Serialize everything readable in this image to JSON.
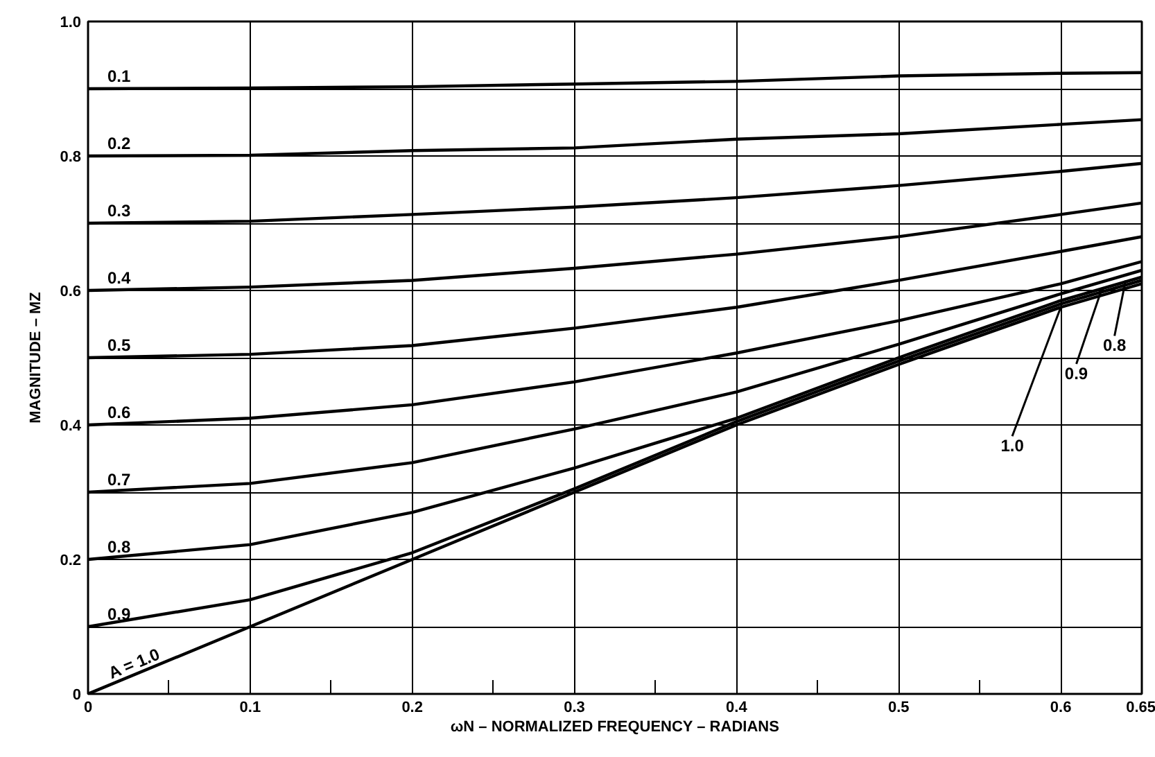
{
  "chart_data": {
    "type": "line",
    "xlabel": "ωN – NORMALIZED FREQUENCY – RADIANS",
    "ylabel": "MAGNITUDE – MZ",
    "x": [
      0,
      0.1,
      0.2,
      0.3,
      0.4,
      0.5,
      0.6,
      0.65
    ],
    "series": [
      {
        "name": "0.1",
        "color": "#000000",
        "values": [
          0.9,
          0.901,
          0.903,
          0.907,
          0.911,
          0.919,
          0.923,
          0.924
        ]
      },
      {
        "name": "0.2",
        "color": "#000000",
        "values": [
          0.8,
          0.801,
          0.808,
          0.812,
          0.825,
          0.833,
          0.847,
          0.854
        ]
      },
      {
        "name": "0.3",
        "color": "#000000",
        "values": [
          0.7,
          0.703,
          0.713,
          0.724,
          0.738,
          0.756,
          0.777,
          0.789
        ]
      },
      {
        "name": "0.4",
        "color": "#000000",
        "values": [
          0.6,
          0.605,
          0.615,
          0.633,
          0.654,
          0.68,
          0.713,
          0.73
        ]
      },
      {
        "name": "0.5",
        "color": "#000000",
        "values": [
          0.5,
          0.505,
          0.518,
          0.544,
          0.575,
          0.615,
          0.658,
          0.68
        ]
      },
      {
        "name": "0.6",
        "color": "#000000",
        "values": [
          0.4,
          0.41,
          0.43,
          0.464,
          0.507,
          0.555,
          0.61,
          0.643
        ]
      },
      {
        "name": "0.7",
        "color": "#000000",
        "values": [
          0.3,
          0.313,
          0.344,
          0.394,
          0.449,
          0.52,
          0.595,
          0.63
        ]
      },
      {
        "name": "0.8",
        "color": "#000000",
        "values": [
          0.2,
          0.222,
          0.27,
          0.336,
          0.41,
          0.5,
          0.585,
          0.62
        ]
      },
      {
        "name": "0.9",
        "color": "#000000",
        "values": [
          0.1,
          0.14,
          0.21,
          0.305,
          0.405,
          0.495,
          0.58,
          0.615
        ]
      },
      {
        "name": "A = 1.0",
        "color": "#000000",
        "values": [
          0,
          0.1,
          0.2,
          0.3,
          0.4,
          0.49,
          0.575,
          0.61
        ]
      }
    ],
    "annotations": [
      {
        "text": "1.0",
        "x": 0.6,
        "y": 0.575
      },
      {
        "text": "0.9",
        "x": 0.625,
        "y": 0.6
      },
      {
        "text": "0.8",
        "x": 0.64,
        "y": 0.615
      }
    ],
    "xlim": [
      0,
      0.65
    ],
    "ylim": [
      0,
      1.0
    ],
    "xticks": [
      {
        "value": 0,
        "label": "0"
      },
      {
        "value": 0.05,
        "label": null
      },
      0.1,
      {
        "value": 0.15,
        "label": null
      },
      0.2,
      {
        "value": 0.25,
        "label": null
      },
      0.3,
      {
        "value": 0.35,
        "label": null
      },
      0.4,
      {
        "value": 0.45,
        "label": null
      },
      0.5,
      {
        "value": 0.55,
        "label": null
      },
      0.6,
      0.65
    ],
    "yticks": [
      {
        "value": 0,
        "label": "0"
      },
      {
        "value": 0.1,
        "label": null
      },
      0.2,
      {
        "value": 0.3,
        "label": null
      },
      0.4,
      {
        "value": 0.5,
        "label": null
      },
      0.6,
      {
        "value": 0.7,
        "label": null
      },
      0.8,
      {
        "value": 0.9,
        "label": null
      },
      {
        "value": 1.0,
        "label": "1.0"
      }
    ],
    "grid": true,
    "marker": "none",
    "line_style": "solid"
  }
}
